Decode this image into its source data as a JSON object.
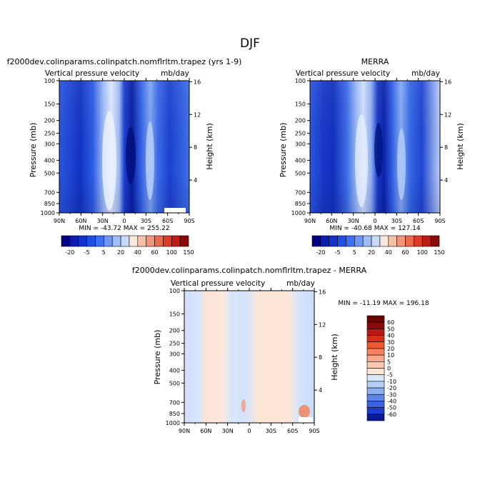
{
  "page_title": "DJF",
  "chart_data": [
    {
      "type": "heatmap",
      "title": "f2000dev.colinparams.colinpatch.nomflrltm.trapez (yrs 1-9)",
      "subtitle": "Vertical pressure velocity",
      "units": "mb/day",
      "ylabel": "Pressure (mb)",
      "y2label": "Height (km)",
      "xticks": [
        "90N",
        "60N",
        "30N",
        "0",
        "30S",
        "60S",
        "90S"
      ],
      "yticks": [
        100,
        150,
        200,
        250,
        300,
        400,
        500,
        700,
        850,
        1000
      ],
      "y2ticks": [
        4,
        8,
        12,
        16
      ],
      "ylim": [
        1000,
        100
      ],
      "min_label": "MIN = -43.72",
      "max_label": "MAX = 255.22",
      "colorbar": [
        "-20",
        "-5",
        "5",
        "20",
        "40",
        "60",
        "100",
        "150"
      ]
    },
    {
      "type": "heatmap",
      "title": "MERRA",
      "subtitle": "Vertical pressure velocity",
      "units": "mb/day",
      "ylabel": "Pressure (mb)",
      "y2label": "Height (km)",
      "xticks": [
        "90N",
        "60N",
        "30N",
        "0",
        "30S",
        "60S",
        "90S"
      ],
      "yticks": [
        100,
        150,
        200,
        250,
        300,
        400,
        500,
        700,
        850,
        1000
      ],
      "y2ticks": [
        4,
        8,
        12,
        16
      ],
      "ylim": [
        1000,
        100
      ],
      "min_label": "MIN = -40.68",
      "max_label": "MAX = 127.14",
      "colorbar": [
        "-20",
        "-5",
        "5",
        "20",
        "40",
        "60",
        "100",
        "150"
      ]
    },
    {
      "type": "heatmap",
      "title": "f2000dev.colinparams.colinpatch.nomflrltm.trapez - MERRA",
      "subtitle": "Vertical pressure velocity",
      "units": "mb/day",
      "ylabel": "Pressure (mb)",
      "y2label": "Height (km)",
      "xticks": [
        "90N",
        "60N",
        "30N",
        "0",
        "30S",
        "60S",
        "90S"
      ],
      "yticks": [
        100,
        150,
        200,
        250,
        300,
        400,
        500,
        700,
        850,
        1000
      ],
      "y2ticks": [
        4,
        8,
        12,
        16
      ],
      "ylim": [
        1000,
        100
      ],
      "minmax_label": "MIN = -11.19  MAX = 196.18",
      "colorbar": [
        "60",
        "50",
        "40",
        "30",
        "20",
        "10",
        "5",
        "0",
        "-5",
        "-10",
        "-20",
        "-30",
        "-40",
        "-50",
        "-60"
      ]
    }
  ],
  "colors": {
    "main_scale": [
      "#000080",
      "#0a1fb0",
      "#1232cc",
      "#1e50e6",
      "#3c6ef0",
      "#6e96f5",
      "#9ebcf7",
      "#c8dafa",
      "#fbe8dc",
      "#f7c0a8",
      "#f2967a",
      "#ea6a4c",
      "#dc3c28",
      "#bb1e14",
      "#8a0a0a"
    ],
    "diff_scale": [
      "#8a0a0a",
      "#b81a10",
      "#d83018",
      "#ee5a30",
      "#f68060",
      "#f9a88c",
      "#fbc8b0",
      "#fde6d8",
      "#d8e8fb",
      "#b4cff6",
      "#8eb0f0",
      "#5e86ea",
      "#3a62e2",
      "#1c3cd2",
      "#0a1a98"
    ],
    "band_colors": [
      "#1a3fd0",
      "#2a5ae0",
      "#5a88ee",
      "#ccdcfa",
      "#0a22b0",
      "#3a6ae6",
      "#8fb2f3"
    ]
  },
  "fields": {
    "model": [
      {
        "lat": 90,
        "profile": "mid"
      },
      {
        "lat": 75,
        "profile": "mid"
      },
      {
        "lat": 60,
        "profile": "dark"
      },
      {
        "lat": 45,
        "profile": "mid"
      },
      {
        "lat": 30,
        "profile": "light"
      },
      {
        "lat": 15,
        "profile": "dark"
      },
      {
        "lat": 0,
        "profile": "darkest"
      },
      {
        "lat": -15,
        "profile": "mid"
      },
      {
        "lat": -30,
        "profile": "light"
      },
      {
        "lat": -45,
        "profile": "mid"
      },
      {
        "lat": -60,
        "profile": "dark"
      },
      {
        "lat": -75,
        "profile": "mid"
      },
      {
        "lat": -90,
        "profile": "mid"
      }
    ]
  }
}
